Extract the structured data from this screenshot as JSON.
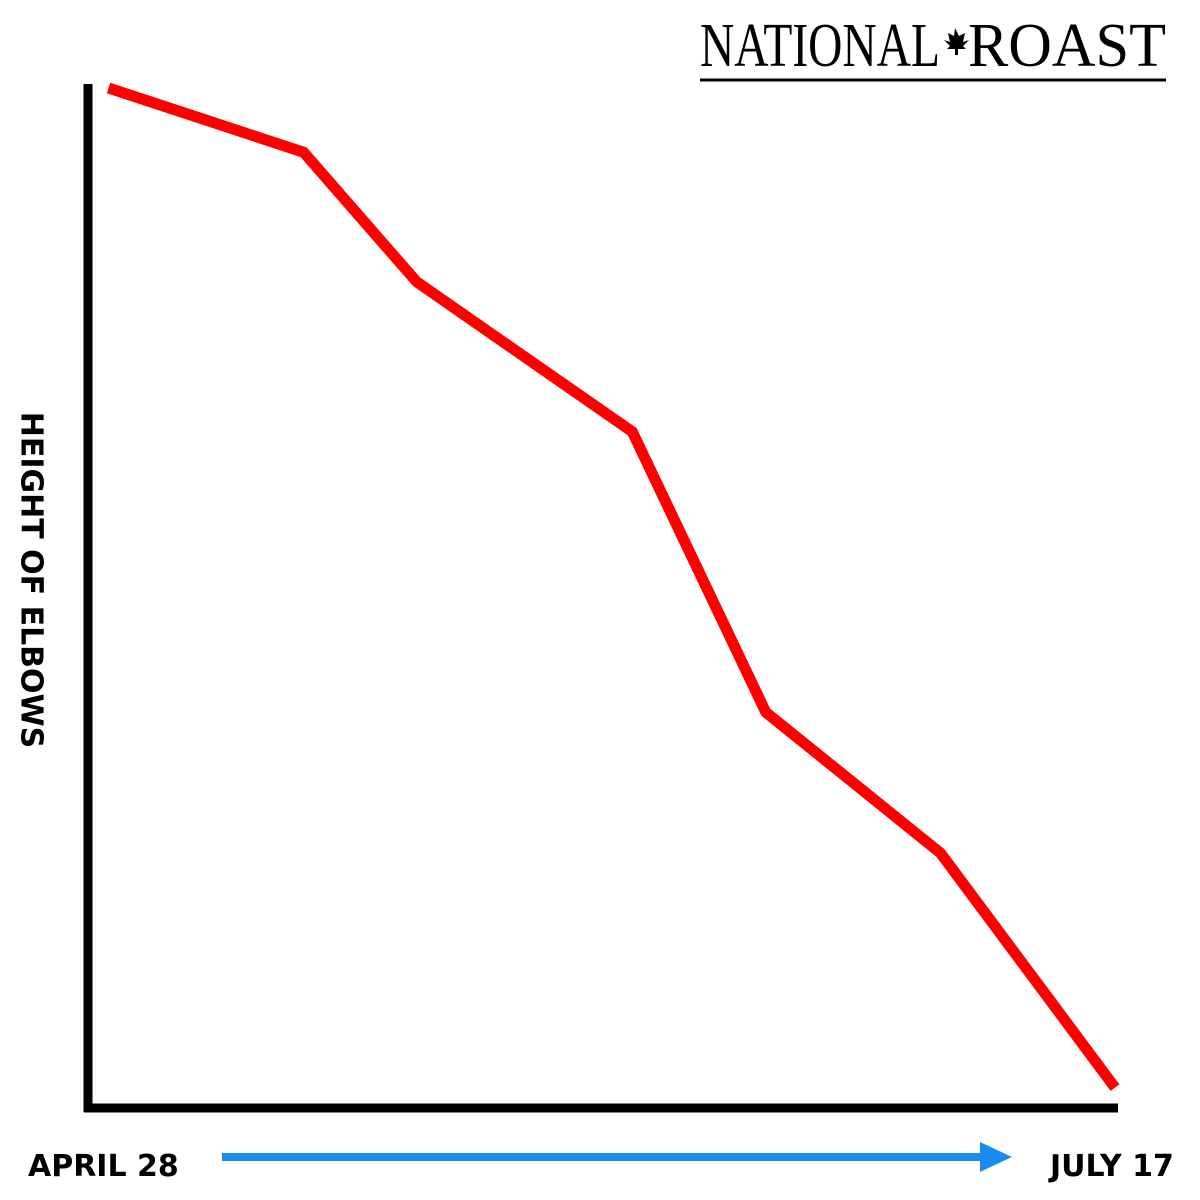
{
  "chart_data": {
    "type": "line",
    "brand": {
      "left": "NATIONAL",
      "right": "ROAST"
    },
    "y_label": "HEIGHT OF ELBOWS",
    "x_start_label": "APRIL 28",
    "x_end_label": "JULY 17",
    "x": [
      2,
      21,
      32,
      53,
      66,
      83,
      100
    ],
    "series": [
      {
        "color": "#ff0000",
        "values": [
          100,
          93.7,
          81,
          66.3,
          38.8,
          25,
          2
        ]
      }
    ],
    "xlim": [
      0,
      100
    ],
    "ylim": [
      0,
      100
    ],
    "arrow_color": "#1a8cf0"
  }
}
